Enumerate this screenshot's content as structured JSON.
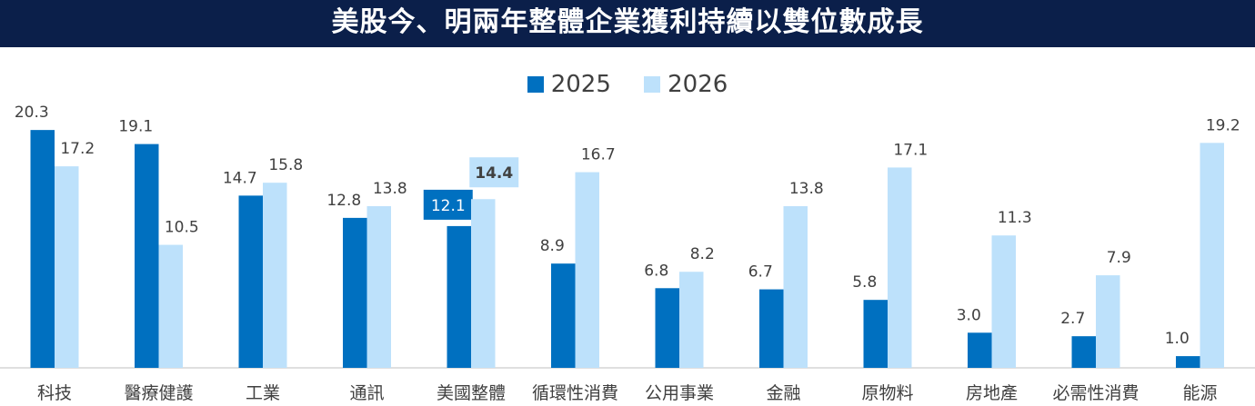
{
  "title": "美股今、明兩年整體企業獲利持續以雙位數成長",
  "colors": {
    "s2025": "#0070c0",
    "s2026": "#bde1fb",
    "title_bg": "#0b1f4a",
    "label": "#404040"
  },
  "chart_data": {
    "type": "bar",
    "title": "美股今、明兩年整體企業獲利持續以雙位數成長",
    "categories": [
      "科技",
      "醫療健護",
      "工業",
      "通訊",
      "美國整體",
      "循環性消費",
      "公用事業",
      "金融",
      "原物料",
      "房地產",
      "必需性消費",
      "能源"
    ],
    "series": [
      {
        "name": "2025",
        "values": [
          20.3,
          19.1,
          14.7,
          12.8,
          12.1,
          8.9,
          6.8,
          6.7,
          5.8,
          3.0,
          2.7,
          1.0
        ]
      },
      {
        "name": "2026",
        "values": [
          17.2,
          10.5,
          15.8,
          13.8,
          14.4,
          16.7,
          8.2,
          13.8,
          17.1,
          11.3,
          7.9,
          19.2
        ]
      }
    ],
    "highlight_category": "美國整體",
    "legend": "top",
    "ylim": [
      0,
      21
    ],
    "grid": false
  }
}
